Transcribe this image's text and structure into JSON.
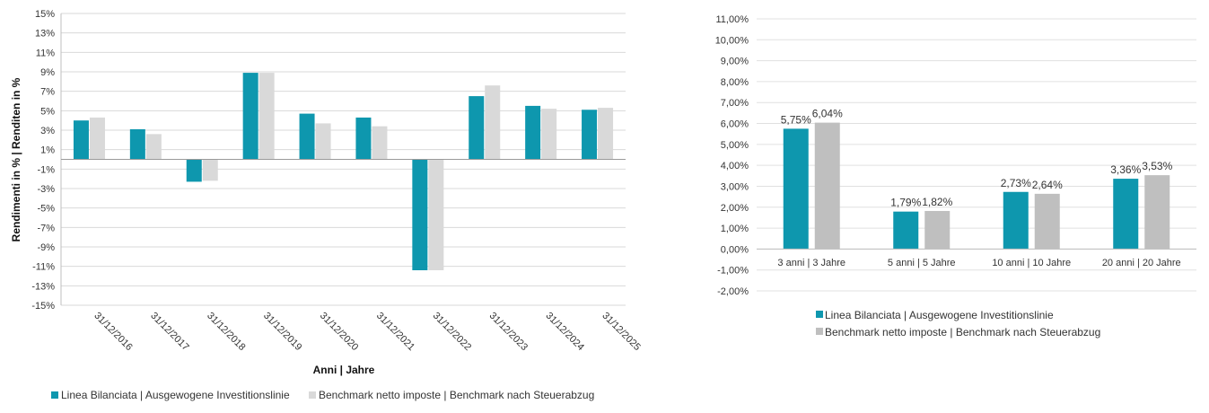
{
  "chart_data": [
    {
      "type": "bar",
      "title": "",
      "xlabel": "Anni | Jahre",
      "ylabel": "Rendimenti in % | Renditen in %",
      "categories": [
        "31/12/2016",
        "31/12/2017",
        "31/12/2018",
        "31/12/2019",
        "31/12/2020",
        "31/12/2021",
        "31/12/2022",
        "31/12/2023",
        "31/12/2024",
        "31/12/2025"
      ],
      "series": [
        {
          "name": "Linea Bilanciata | Ausgewogene Investitionslinie",
          "color": "#0e97ae",
          "values": [
            4.0,
            3.1,
            -2.3,
            8.9,
            4.7,
            4.3,
            -11.4,
            6.5,
            5.5,
            5.1
          ]
        },
        {
          "name": "Benchmark netto imposte | Benchmark nach Steuerabzug",
          "color": "#d9d9d9",
          "values": [
            4.3,
            2.6,
            -2.2,
            8.9,
            3.7,
            3.4,
            -11.4,
            7.6,
            5.2,
            5.3
          ]
        }
      ],
      "ylim": [
        -15,
        15
      ],
      "yticks": [
        "15%",
        "13%",
        "11%",
        "9%",
        "7%",
        "5%",
        "3%",
        "1%",
        "-1%",
        "-3%",
        "-5%",
        "-7%",
        "-9%",
        "-11%",
        "-13%",
        "-15%"
      ],
      "grid": true,
      "legend": "bottom"
    },
    {
      "type": "bar",
      "title": "",
      "xlabel": "",
      "ylabel": "",
      "categories": [
        "3 anni | 3 Jahre",
        "5 anni | 5 Jahre",
        "10 anni | 10 Jahre",
        "20 anni | 20 Jahre"
      ],
      "series": [
        {
          "name": "Linea Bilanciata | Ausgewogene Investitionslinie",
          "color": "#0e97ae",
          "values": [
            5.75,
            1.79,
            2.73,
            3.36
          ],
          "labels": [
            "5,75%",
            "1,79%",
            "2,73%",
            "3,36%"
          ]
        },
        {
          "name": "Benchmark netto imposte | Benchmark nach Steuerabzug",
          "color": "#bfbfbf",
          "values": [
            6.04,
            1.82,
            2.64,
            3.53
          ],
          "labels": [
            "6,04%",
            "1,82%",
            "2,64%",
            "3,53%"
          ]
        }
      ],
      "ylim": [
        -2,
        11
      ],
      "yticks": [
        "11,00%",
        "10,00%",
        "9,00%",
        "8,00%",
        "7,00%",
        "6,00%",
        "5,00%",
        "4,00%",
        "3,00%",
        "2,00%",
        "1,00%",
        "0,00%",
        "-1,00%",
        "-2,00%"
      ],
      "grid": true,
      "legend": "bottom"
    }
  ]
}
